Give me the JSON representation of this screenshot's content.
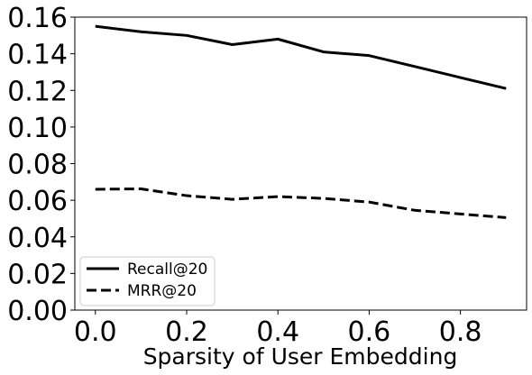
{
  "chart_data": {
    "type": "line",
    "xlabel": "Sparsity of User Embedding",
    "ylabel": "",
    "xlim": [
      -0.045,
      0.945
    ],
    "ylim": [
      0.0,
      0.16
    ],
    "xticks": [
      0.0,
      0.2,
      0.4,
      0.6,
      0.8
    ],
    "xtick_labels": [
      "0.0",
      "0.2",
      "0.4",
      "0.6",
      "0.8"
    ],
    "yticks": [
      0.0,
      0.02,
      0.04,
      0.06,
      0.08,
      0.1,
      0.12,
      0.14,
      0.16
    ],
    "ytick_labels": [
      "0.00",
      "0.02",
      "0.04",
      "0.06",
      "0.08",
      "0.10",
      "0.12",
      "0.14",
      "0.16"
    ],
    "grid": false,
    "legend_position": "lower-left",
    "x": [
      0.0,
      0.1,
      0.2,
      0.3,
      0.4,
      0.5,
      0.6,
      0.7,
      0.8,
      0.9
    ],
    "series": [
      {
        "name": "Recall@20",
        "style": "solid",
        "color": "#000000",
        "values": [
          0.155,
          0.152,
          0.15,
          0.145,
          0.148,
          0.141,
          0.139,
          0.133,
          0.127,
          0.121
        ]
      },
      {
        "name": "MRR@20",
        "style": "dashed",
        "color": "#000000",
        "values": [
          0.066,
          0.0662,
          0.0625,
          0.0605,
          0.062,
          0.061,
          0.059,
          0.0545,
          0.0525,
          0.0505
        ]
      }
    ]
  }
}
